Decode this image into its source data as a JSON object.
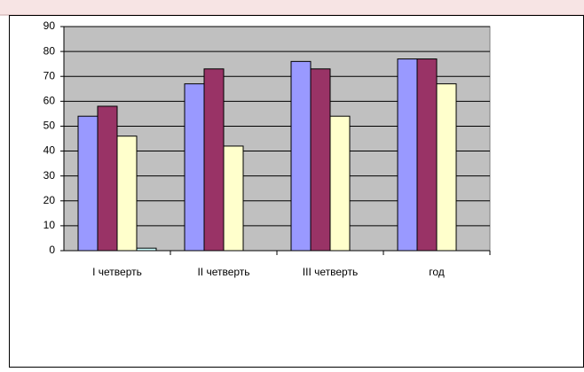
{
  "chart_data": {
    "type": "bar",
    "categories": [
      "I четверть",
      "II четверть",
      "III четверть",
      "год"
    ],
    "series": [
      {
        "color": "#9999ff",
        "values": [
          54,
          67,
          76,
          77
        ]
      },
      {
        "color": "#993366",
        "values": [
          58,
          73,
          73,
          77
        ]
      },
      {
        "color": "#ffffcc",
        "values": [
          46,
          42,
          54,
          67
        ]
      },
      {
        "color": "#ccffff",
        "values": [
          1,
          null,
          null,
          null
        ]
      }
    ],
    "ylim": [
      0,
      90
    ],
    "yticks": [
      0,
      10,
      20,
      30,
      40,
      50,
      60,
      70,
      80,
      90
    ],
    "grid": true
  }
}
